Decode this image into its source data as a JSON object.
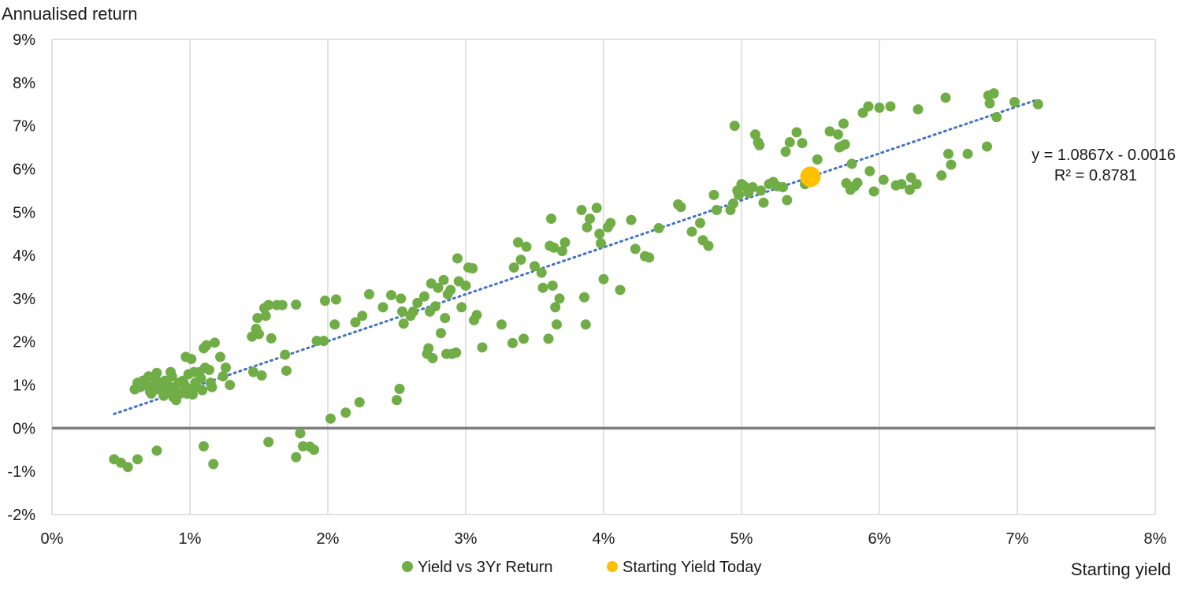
{
  "chart_data": {
    "type": "scatter",
    "ylabel": "Annualised return",
    "xlabel": "Starting yield",
    "x_range": [
      0,
      8
    ],
    "y_range": [
      -2,
      9
    ],
    "x_ticks": [
      "0%",
      "1%",
      "2%",
      "3%",
      "4%",
      "5%",
      "6%",
      "7%",
      "8%"
    ],
    "y_ticks": [
      "9%",
      "8%",
      "7%",
      "6%",
      "5%",
      "4%",
      "3%",
      "2%",
      "1%",
      "0%",
      "-1%",
      "-2%"
    ],
    "grid": "vertical",
    "legend_position": "bottom",
    "colors": {
      "series": "#70AD47",
      "highlight": "#FFC000",
      "trend": "#4472C4",
      "zero_line": "#7f7f7f",
      "grid": "#d9d9d9"
    },
    "trendline": {
      "equation": "y = 1.0867x - 0.0016",
      "r_squared": "R² = 0.8781",
      "x_start": 0.45,
      "x_end": 7.15,
      "slope": 1.0867,
      "intercept": -0.16
    },
    "series": [
      {
        "name": "Yield vs 3Yr Return",
        "points": [
          [
            0.45,
            -0.72
          ],
          [
            0.5,
            -0.8
          ],
          [
            0.55,
            -0.9
          ],
          [
            0.62,
            -0.72
          ],
          [
            0.76,
            -0.52
          ],
          [
            1.1,
            -0.42
          ],
          [
            1.17,
            -0.83
          ],
          [
            1.57,
            -0.32
          ],
          [
            1.77,
            -0.67
          ],
          [
            1.8,
            -0.12
          ],
          [
            1.82,
            -0.42
          ],
          [
            1.87,
            -0.43
          ],
          [
            1.9,
            -0.5
          ],
          [
            0.6,
            0.9
          ],
          [
            0.62,
            1.05
          ],
          [
            0.64,
            0.95
          ],
          [
            0.66,
            1.1
          ],
          [
            0.68,
            1.0
          ],
          [
            0.7,
            1.2
          ],
          [
            0.71,
            0.85
          ],
          [
            0.72,
            0.8
          ],
          [
            0.74,
            1.0
          ],
          [
            0.75,
            1.15
          ],
          [
            0.76,
            1.28
          ],
          [
            0.77,
            0.9
          ],
          [
            0.78,
            1.05
          ],
          [
            0.8,
            0.95
          ],
          [
            0.81,
            0.75
          ],
          [
            0.82,
            1.1
          ],
          [
            0.84,
            1.0
          ],
          [
            0.85,
            0.85
          ],
          [
            0.86,
            1.3
          ],
          [
            0.87,
            1.2
          ],
          [
            0.88,
            0.72
          ],
          [
            0.89,
            0.95
          ],
          [
            0.9,
            0.65
          ],
          [
            0.92,
            1.05
          ],
          [
            0.93,
            0.8
          ],
          [
            0.95,
            1.1
          ],
          [
            0.96,
            1.0
          ],
          [
            0.97,
            1.65
          ],
          [
            0.98,
            0.8
          ],
          [
            0.99,
            1.25
          ],
          [
            1.0,
            0.9
          ],
          [
            1.01,
            1.6
          ],
          [
            1.02,
            0.78
          ],
          [
            1.03,
            1.3
          ],
          [
            1.04,
            1.05
          ],
          [
            1.05,
            0.95
          ],
          [
            1.07,
            1.3
          ],
          [
            1.08,
            1.15
          ],
          [
            1.09,
            0.88
          ],
          [
            1.1,
            1.85
          ],
          [
            1.11,
            1.4
          ],
          [
            1.12,
            1.92
          ],
          [
            1.14,
            1.35
          ],
          [
            1.15,
            1.05
          ],
          [
            1.16,
            0.95
          ],
          [
            1.18,
            1.98
          ],
          [
            1.22,
            1.65
          ],
          [
            1.24,
            1.2
          ],
          [
            1.26,
            1.4
          ],
          [
            1.29,
            1.0
          ],
          [
            1.45,
            2.12
          ],
          [
            1.46,
            1.3
          ],
          [
            1.48,
            2.3
          ],
          [
            1.49,
            2.55
          ],
          [
            1.5,
            2.18
          ],
          [
            1.52,
            1.22
          ],
          [
            1.54,
            2.78
          ],
          [
            1.55,
            2.6
          ],
          [
            1.57,
            2.85
          ],
          [
            1.59,
            2.08
          ],
          [
            1.63,
            2.85
          ],
          [
            1.67,
            2.85
          ],
          [
            1.69,
            1.7
          ],
          [
            1.7,
            1.33
          ],
          [
            1.77,
            2.86
          ],
          [
            1.92,
            2.02
          ],
          [
            1.97,
            2.02
          ],
          [
            1.98,
            2.95
          ],
          [
            2.02,
            0.22
          ],
          [
            2.05,
            2.4
          ],
          [
            2.06,
            2.98
          ],
          [
            2.13,
            0.36
          ],
          [
            2.2,
            2.45
          ],
          [
            2.23,
            0.6
          ],
          [
            2.25,
            2.6
          ],
          [
            2.3,
            3.1
          ],
          [
            2.4,
            2.8
          ],
          [
            2.46,
            3.08
          ],
          [
            2.5,
            0.65
          ],
          [
            2.52,
            0.91
          ],
          [
            2.53,
            3.0
          ],
          [
            2.54,
            2.7
          ],
          [
            2.55,
            2.42
          ],
          [
            2.6,
            2.6
          ],
          [
            2.62,
            2.7
          ],
          [
            2.65,
            2.9
          ],
          [
            2.7,
            3.05
          ],
          [
            2.72,
            1.72
          ],
          [
            2.73,
            1.85
          ],
          [
            2.74,
            2.7
          ],
          [
            2.75,
            3.35
          ],
          [
            2.76,
            1.62
          ],
          [
            2.78,
            2.82
          ],
          [
            2.8,
            3.25
          ],
          [
            2.82,
            2.2
          ],
          [
            2.84,
            3.43
          ],
          [
            2.85,
            2.55
          ],
          [
            2.86,
            1.72
          ],
          [
            2.87,
            3.1
          ],
          [
            2.89,
            3.2
          ],
          [
            2.9,
            1.72
          ],
          [
            2.93,
            1.75
          ],
          [
            2.94,
            3.93
          ],
          [
            2.95,
            3.4
          ],
          [
            2.97,
            2.8
          ],
          [
            3.0,
            3.3
          ],
          [
            3.02,
            3.72
          ],
          [
            3.05,
            3.7
          ],
          [
            3.06,
            2.5
          ],
          [
            3.08,
            2.62
          ],
          [
            3.12,
            1.87
          ],
          [
            3.26,
            2.4
          ],
          [
            3.34,
            1.97
          ],
          [
            3.35,
            3.72
          ],
          [
            3.38,
            4.3
          ],
          [
            3.4,
            3.9
          ],
          [
            3.42,
            2.07
          ],
          [
            3.44,
            4.2
          ],
          [
            3.5,
            3.75
          ],
          [
            3.55,
            3.6
          ],
          [
            3.56,
            3.25
          ],
          [
            3.6,
            2.07
          ],
          [
            3.61,
            4.22
          ],
          [
            3.62,
            4.85
          ],
          [
            3.63,
            3.3
          ],
          [
            3.64,
            4.18
          ],
          [
            3.65,
            2.8
          ],
          [
            3.66,
            2.4
          ],
          [
            3.68,
            3.0
          ],
          [
            3.7,
            4.1
          ],
          [
            3.72,
            4.3
          ],
          [
            3.84,
            5.05
          ],
          [
            3.86,
            3.03
          ],
          [
            3.87,
            2.4
          ],
          [
            3.88,
            4.65
          ],
          [
            3.9,
            4.85
          ],
          [
            3.95,
            5.1
          ],
          [
            3.97,
            4.5
          ],
          [
            3.98,
            4.28
          ],
          [
            4.0,
            3.45
          ],
          [
            4.03,
            4.65
          ],
          [
            4.05,
            4.75
          ],
          [
            4.12,
            3.2
          ],
          [
            4.2,
            4.82
          ],
          [
            4.23,
            4.15
          ],
          [
            4.3,
            3.98
          ],
          [
            4.33,
            3.95
          ],
          [
            4.4,
            4.63
          ],
          [
            4.54,
            5.18
          ],
          [
            4.56,
            5.12
          ],
          [
            4.64,
            4.55
          ],
          [
            4.7,
            4.75
          ],
          [
            4.72,
            4.35
          ],
          [
            4.76,
            4.22
          ],
          [
            4.8,
            5.4
          ],
          [
            4.82,
            5.05
          ],
          [
            4.92,
            5.05
          ],
          [
            4.94,
            5.2
          ],
          [
            4.95,
            7.0
          ],
          [
            4.97,
            5.5
          ],
          [
            4.98,
            5.4
          ],
          [
            5.0,
            5.65
          ],
          [
            5.02,
            5.6
          ],
          [
            5.05,
            5.45
          ],
          [
            5.08,
            5.58
          ],
          [
            5.1,
            6.8
          ],
          [
            5.12,
            6.62
          ],
          [
            5.13,
            6.55
          ],
          [
            5.14,
            5.5
          ],
          [
            5.16,
            5.22
          ],
          [
            5.2,
            5.65
          ],
          [
            5.23,
            5.7
          ],
          [
            5.26,
            5.6
          ],
          [
            5.3,
            5.58
          ],
          [
            5.32,
            6.4
          ],
          [
            5.33,
            5.28
          ],
          [
            5.35,
            6.62
          ],
          [
            5.4,
            6.85
          ],
          [
            5.44,
            6.6
          ],
          [
            5.46,
            5.65
          ],
          [
            5.55,
            6.22
          ],
          [
            5.64,
            6.87
          ],
          [
            5.7,
            6.8
          ],
          [
            5.71,
            6.5
          ],
          [
            5.72,
            6.52
          ],
          [
            5.74,
            7.05
          ],
          [
            5.75,
            6.57
          ],
          [
            5.76,
            5.67
          ],
          [
            5.79,
            5.52
          ],
          [
            5.8,
            6.12
          ],
          [
            5.82,
            5.6
          ],
          [
            5.84,
            5.68
          ],
          [
            5.88,
            7.3
          ],
          [
            5.92,
            7.45
          ],
          [
            5.93,
            5.95
          ],
          [
            5.96,
            5.48
          ],
          [
            6.0,
            7.42
          ],
          [
            6.03,
            5.75
          ],
          [
            6.08,
            7.45
          ],
          [
            6.12,
            5.62
          ],
          [
            6.16,
            5.65
          ],
          [
            6.22,
            5.52
          ],
          [
            6.23,
            5.8
          ],
          [
            6.27,
            5.65
          ],
          [
            6.28,
            7.38
          ],
          [
            6.45,
            5.85
          ],
          [
            6.48,
            7.65
          ],
          [
            6.5,
            6.35
          ],
          [
            6.52,
            6.1
          ],
          [
            6.64,
            6.35
          ],
          [
            6.78,
            6.52
          ],
          [
            6.79,
            7.7
          ],
          [
            6.8,
            7.52
          ],
          [
            6.83,
            7.75
          ],
          [
            6.85,
            7.2
          ],
          [
            6.98,
            7.55
          ],
          [
            7.15,
            7.5
          ]
        ]
      },
      {
        "name": "Starting Yield Today",
        "points": [
          [
            5.5,
            5.82
          ]
        ]
      }
    ]
  }
}
